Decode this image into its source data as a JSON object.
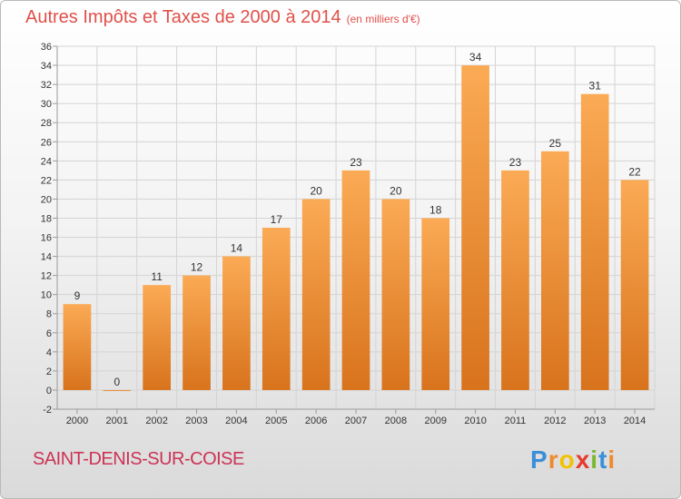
{
  "title": "Autres Impôts et Taxes de 2000 à 2014",
  "unit_note": "(en milliers d'€)",
  "commune": "SAINT-DENIS-SUR-COISE",
  "logo": {
    "letters": [
      "P",
      "r",
      "o",
      "x",
      "i",
      "t",
      "i"
    ],
    "colors": [
      "#3a8fd8",
      "#ef8a2c",
      "#f2c200",
      "#e83a2c",
      "#79b833",
      "#3a8fd8",
      "#ef8a2c"
    ]
  },
  "colors": {
    "bar_light": "#fbaa55",
    "bar_dark": "#d8731c",
    "grid": "#d4d4d4",
    "axis": "#9a9a9a",
    "text": "#333333"
  },
  "chart_data": {
    "type": "bar",
    "categories": [
      "2000",
      "2001",
      "2002",
      "2003",
      "2004",
      "2005",
      "2006",
      "2007",
      "2008",
      "2009",
      "2010",
      "2011",
      "2012",
      "2013",
      "2014"
    ],
    "values": [
      9,
      0,
      11,
      12,
      14,
      17,
      20,
      23,
      20,
      18,
      34,
      23,
      25,
      31,
      22
    ],
    "data_labels": [
      "9",
      "0",
      "11",
      "12",
      "14",
      "17",
      "20",
      "23",
      "20",
      "18",
      "34",
      "23",
      "25",
      "31",
      "22"
    ],
    "ylim": [
      -2,
      36
    ],
    "y_ticks": [
      "-2",
      "0",
      "2",
      "4",
      "6",
      "8",
      "10",
      "12",
      "14",
      "16",
      "18",
      "20",
      "22",
      "24",
      "26",
      "28",
      "30",
      "32",
      "34",
      "36"
    ],
    "grid": true,
    "legend": "none"
  }
}
